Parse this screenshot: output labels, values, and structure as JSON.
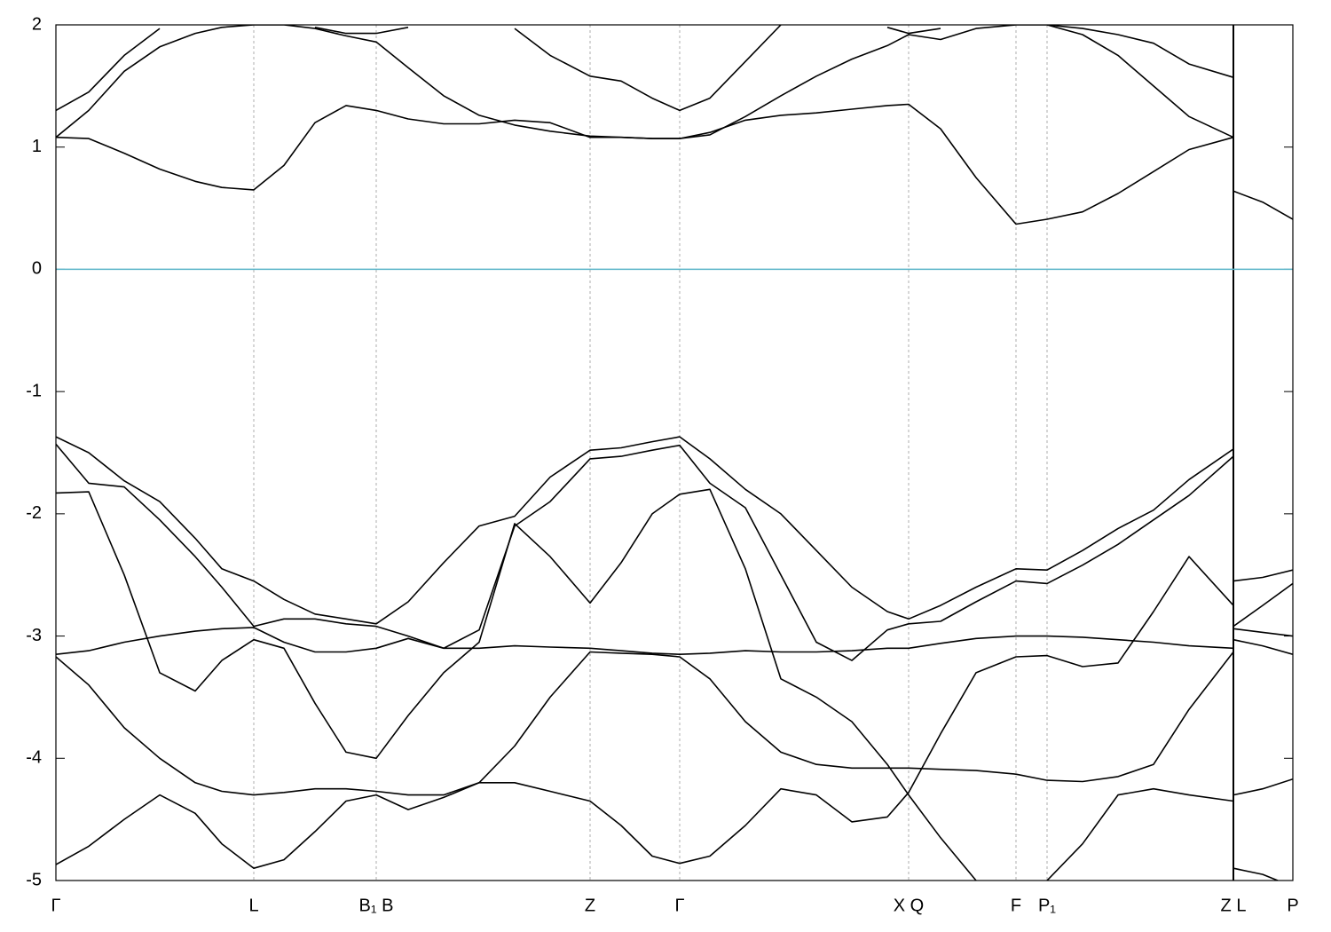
{
  "chart_data": {
    "type": "line",
    "color": "#000000",
    "xlim": [
      0,
      1394
    ],
    "ylim": [
      -5,
      2
    ],
    "xticks": [
      {
        "value": 0,
        "label": "Γ"
      },
      {
        "value": 223,
        "label": "L"
      },
      {
        "value": 361,
        "label": "B₁ B"
      },
      {
        "value": 602,
        "label": "Z"
      },
      {
        "value": 703,
        "label": "Γ"
      },
      {
        "value": 961,
        "label": "X Q"
      },
      {
        "value": 1082,
        "label": "F"
      },
      {
        "value": 1117,
        "label": "P₁"
      },
      {
        "value": 1327,
        "label": "Z L"
      },
      {
        "value": 1394,
        "label": "P"
      }
    ],
    "yticks": [
      -5,
      -4,
      -3,
      -2,
      -1,
      0,
      1,
      2
    ],
    "grid": true,
    "segment_break": 1327,
    "reference_line": 0,
    "reference_color": "#5ab4c8",
    "x": [
      0,
      37,
      77,
      117,
      157,
      187,
      223,
      257,
      292,
      327,
      361,
      397,
      437,
      477,
      517,
      557,
      602,
      637,
      672,
      703,
      737,
      777,
      817,
      857,
      897,
      937,
      961,
      997,
      1037,
      1082,
      1117,
      1157,
      1197,
      1237,
      1277,
      1327
    ],
    "series": [
      {
        "values": [
          1.08,
          1.07,
          0.95,
          0.82,
          0.72,
          0.67,
          0.65,
          0.85,
          1.2,
          1.34,
          1.3,
          1.23,
          1.19,
          1.19,
          1.22,
          1.2,
          1.08,
          1.08,
          1.07,
          1.07,
          1.12,
          1.22,
          1.26,
          1.28,
          1.31,
          1.34,
          1.35,
          1.15,
          0.75,
          0.37,
          0.41,
          0.47,
          0.62,
          0.8,
          0.98,
          1.08
        ]
      },
      {
        "values": [
          1.08,
          1.3,
          1.62,
          1.82,
          1.93,
          1.98,
          2.0,
          2.0,
          1.97,
          1.91,
          1.86,
          1.65,
          1.42,
          1.26,
          1.18,
          1.13,
          1.09,
          1.08,
          1.07,
          1.07,
          1.1,
          1.25,
          1.42,
          1.58,
          1.72,
          1.83,
          1.92,
          1.88,
          1.97,
          2.0,
          2.0,
          1.92,
          1.75,
          1.5,
          1.25,
          1.08
        ]
      },
      {
        "values": [
          1.3,
          1.45,
          1.75,
          1.97,
          null,
          null,
          null,
          null,
          1.98,
          1.93,
          1.93,
          1.98,
          null,
          null,
          1.97,
          1.75,
          1.58,
          1.54,
          1.4,
          1.3,
          1.4,
          1.7,
          2.0,
          null,
          null,
          1.98,
          1.93,
          1.97,
          null,
          null,
          2.0,
          1.97,
          1.92,
          1.85,
          1.68,
          1.57
        ]
      },
      {
        "values": [
          -1.37,
          -1.5,
          -1.73,
          -1.9,
          -2.2,
          -2.45,
          -2.55,
          -2.7,
          -2.82,
          -2.86,
          -2.9,
          -2.72,
          -2.4,
          -2.1,
          -2.02,
          -1.7,
          -1.48,
          -1.46,
          -1.41,
          -1.37,
          -1.55,
          -1.8,
          -2.0,
          -2.3,
          -2.6,
          -2.8,
          -2.86,
          -2.75,
          -2.6,
          -2.45,
          -2.46,
          -2.3,
          -2.12,
          -1.97,
          -1.72,
          -1.47
        ]
      },
      {
        "values": [
          -1.43,
          -1.75,
          -1.78,
          -2.05,
          -2.35,
          -2.6,
          -2.92,
          -2.86,
          -2.86,
          -2.9,
          -2.92,
          -3.0,
          -3.1,
          -2.95,
          -2.1,
          -1.9,
          -1.55,
          -1.53,
          -1.48,
          -1.44,
          -1.75,
          -1.95,
          -2.5,
          -3.05,
          -3.2,
          -2.95,
          -2.9,
          -2.88,
          -2.72,
          -2.55,
          -2.57,
          -2.42,
          -2.25,
          -2.05,
          -1.85,
          -1.53
        ]
      },
      {
        "values": [
          -1.83,
          -1.82,
          -2.5,
          -3.3,
          -3.45,
          -3.2,
          -3.03,
          -3.1,
          -3.55,
          -3.95,
          -4.0,
          -3.65,
          -3.3,
          -3.05,
          -2.08,
          -2.35,
          -2.73,
          -2.4,
          -2.0,
          -1.84,
          -1.8,
          -2.45,
          -3.35,
          -3.5,
          -3.7,
          -4.05,
          -4.3,
          -4.65,
          -5.0,
          null,
          null,
          null,
          null,
          null,
          null,
          null
        ]
      },
      {
        "values": [
          -3.15,
          -3.12,
          -3.05,
          -3.0,
          -2.96,
          -2.94,
          -2.93,
          -3.05,
          -3.13,
          -3.13,
          -3.1,
          -3.02,
          -3.1,
          -3.1,
          -3.08,
          -3.09,
          -3.1,
          -3.12,
          -3.14,
          -3.15,
          -3.14,
          -3.12,
          -3.13,
          -3.13,
          -3.12,
          -3.1,
          -3.1,
          -3.06,
          -3.02,
          -3.0,
          -3.0,
          -3.01,
          -3.03,
          -3.05,
          -3.08,
          -3.1
        ]
      },
      {
        "values": [
          -3.17,
          -3.4,
          -3.75,
          -4.0,
          -4.2,
          -4.27,
          -4.3,
          -4.28,
          -4.25,
          -4.25,
          -4.27,
          -4.3,
          -4.3,
          -4.2,
          -3.9,
          -3.5,
          -3.13,
          -3.14,
          -3.15,
          -3.17,
          -3.35,
          -3.7,
          -3.95,
          -4.05,
          -4.08,
          -4.08,
          -4.08,
          -4.09,
          -4.1,
          -4.13,
          -4.18,
          -4.19,
          -4.15,
          -4.05,
          -3.6,
          -3.13
        ]
      },
      {
        "values": [
          -4.87,
          -4.72,
          -4.5,
          -4.3,
          -4.45,
          -4.7,
          -4.9,
          -4.83,
          -4.6,
          -4.35,
          -4.3,
          -4.42,
          -4.32,
          -4.2,
          -4.2,
          -4.27,
          -4.35,
          -4.55,
          -4.8,
          -4.86,
          -4.8,
          -4.55,
          -4.25,
          -4.3,
          -4.52,
          -4.48,
          -4.28,
          -3.8,
          -3.3,
          -3.17,
          -3.16,
          -3.25,
          -3.22,
          -2.8,
          -2.35,
          -2.75
        ]
      },
      {
        "values": [
          null,
          null,
          null,
          null,
          null,
          null,
          null,
          null,
          null,
          null,
          null,
          null,
          null,
          null,
          null,
          null,
          null,
          null,
          null,
          null,
          null,
          null,
          null,
          null,
          null,
          null,
          null,
          null,
          null,
          null,
          -5.0,
          -4.7,
          -4.3,
          -4.25,
          -4.3,
          -4.35
        ]
      },
      {
        "x": [
          1327,
          1360,
          1394
        ],
        "values": [
          0.64,
          0.55,
          0.41
        ]
      },
      {
        "x": [
          1327,
          1360,
          1394
        ],
        "values": [
          -2.55,
          -2.52,
          -2.46
        ]
      },
      {
        "x": [
          1327,
          1360,
          1394
        ],
        "values": [
          -2.92,
          -2.75,
          -2.57
        ]
      },
      {
        "x": [
          1327,
          1360,
          1394
        ],
        "values": [
          -2.94,
          -2.97,
          -3.0
        ]
      },
      {
        "x": [
          1327,
          1360,
          1394
        ],
        "values": [
          -3.03,
          -3.08,
          -3.15
        ]
      },
      {
        "x": [
          1327,
          1360,
          1394
        ],
        "values": [
          -4.3,
          -4.25,
          -4.17
        ]
      },
      {
        "x": [
          1327,
          1360,
          1377
        ],
        "values": [
          -4.9,
          -4.95,
          -5.0
        ]
      }
    ]
  }
}
